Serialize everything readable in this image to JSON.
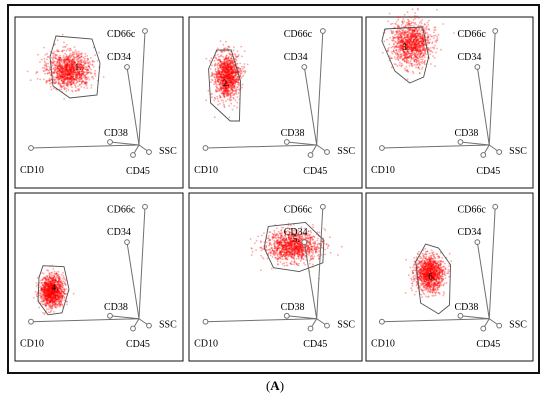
{
  "caption": {
    "open": "(",
    "letter": "A",
    "close": ")"
  },
  "colors": {
    "cloud": "#ff0000",
    "axis": "#707070",
    "gate": "#505050",
    "frame": "#111111"
  },
  "axis_labels": {
    "cd66c": "CD66c",
    "cd34": "CD34",
    "cd38": "CD38",
    "cd10": "CD10",
    "cd45": "CD45",
    "ssc": "SSC"
  },
  "panels": [
    {
      "number": "1."
    },
    {
      "number": "2."
    },
    {
      "number": "3."
    },
    {
      "number": "4."
    },
    {
      "number": "5."
    },
    {
      "number": "6."
    }
  ]
}
